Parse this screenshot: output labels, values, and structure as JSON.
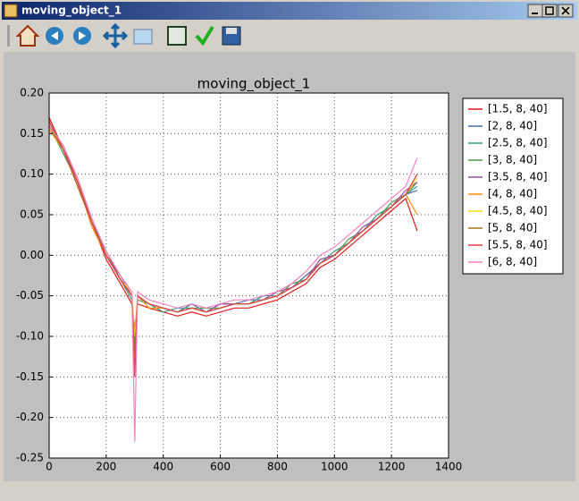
{
  "window": {
    "title": "moving_object_1"
  },
  "chart_data": {
    "type": "line",
    "title": "moving_object_1",
    "x": [
      0,
      50,
      100,
      150,
      200,
      250,
      290,
      300,
      310,
      350,
      400,
      450,
      500,
      550,
      600,
      650,
      700,
      750,
      800,
      850,
      900,
      950,
      1000,
      1050,
      1100,
      1150,
      1200,
      1250,
      1290
    ],
    "series": [
      {
        "name": "[1.5, 8, 40]",
        "color": "#e41a1c",
        "values": [
          0.17,
          0.13,
          0.085,
          0.04,
          -0.005,
          -0.035,
          -0.06,
          -0.09,
          -0.06,
          -0.065,
          -0.07,
          -0.075,
          -0.07,
          -0.075,
          -0.07,
          -0.065,
          -0.065,
          -0.06,
          -0.055,
          -0.045,
          -0.035,
          -0.015,
          -0.005,
          0.01,
          0.025,
          0.04,
          0.055,
          0.07,
          0.03
        ]
      },
      {
        "name": "[2, 8, 40]",
        "color": "#4a6fa5",
        "values": [
          0.16,
          0.135,
          0.09,
          0.045,
          0.0,
          -0.03,
          -0.05,
          -0.12,
          -0.05,
          -0.06,
          -0.065,
          -0.07,
          -0.06,
          -0.07,
          -0.06,
          -0.06,
          -0.055,
          -0.055,
          -0.05,
          -0.04,
          -0.025,
          -0.01,
          0.0,
          0.015,
          0.03,
          0.045,
          0.06,
          0.075,
          0.08
        ]
      },
      {
        "name": "[2.5, 8, 40]",
        "color": "#3d9c8c",
        "values": [
          0.165,
          0.13,
          0.09,
          0.04,
          0.0,
          -0.03,
          -0.055,
          -0.1,
          -0.055,
          -0.06,
          -0.07,
          -0.065,
          -0.065,
          -0.07,
          -0.065,
          -0.06,
          -0.06,
          -0.05,
          -0.05,
          -0.04,
          -0.03,
          -0.01,
          0.005,
          0.015,
          0.03,
          0.05,
          0.06,
          0.075,
          0.085
        ]
      },
      {
        "name": "[3, 8, 40]",
        "color": "#4e9a4e",
        "values": [
          0.16,
          0.125,
          0.09,
          0.04,
          0.005,
          -0.03,
          -0.05,
          -0.11,
          -0.05,
          -0.06,
          -0.065,
          -0.07,
          -0.065,
          -0.065,
          -0.065,
          -0.06,
          -0.06,
          -0.055,
          -0.05,
          -0.035,
          -0.03,
          -0.01,
          0.0,
          0.02,
          0.03,
          0.045,
          0.065,
          0.075,
          0.09
        ]
      },
      {
        "name": "[3.5, 8, 40]",
        "color": "#984ea3",
        "values": [
          0.16,
          0.13,
          0.095,
          0.04,
          0.0,
          -0.025,
          -0.05,
          -0.14,
          -0.05,
          -0.06,
          -0.065,
          -0.07,
          -0.065,
          -0.07,
          -0.06,
          -0.06,
          -0.06,
          -0.055,
          -0.045,
          -0.04,
          -0.03,
          -0.005,
          0.0,
          0.015,
          0.035,
          0.045,
          0.06,
          0.08,
          0.09
        ]
      },
      {
        "name": "[4, 8, 40]",
        "color": "#ff8c00",
        "values": [
          0.155,
          0.13,
          0.09,
          0.035,
          0.0,
          -0.03,
          -0.05,
          -0.13,
          -0.05,
          -0.065,
          -0.065,
          -0.07,
          -0.065,
          -0.07,
          -0.065,
          -0.06,
          -0.06,
          -0.055,
          -0.05,
          -0.04,
          -0.03,
          -0.01,
          0.0,
          0.015,
          0.03,
          0.045,
          0.06,
          0.075,
          0.05
        ]
      },
      {
        "name": "[4.5, 8, 40]",
        "color": "#f2e41c",
        "values": [
          0.16,
          0.13,
          0.09,
          0.04,
          0.0,
          -0.03,
          -0.045,
          -0.1,
          -0.05,
          -0.06,
          -0.065,
          -0.07,
          -0.065,
          -0.07,
          -0.065,
          -0.06,
          -0.06,
          -0.055,
          -0.05,
          -0.04,
          -0.03,
          -0.01,
          0.0,
          0.015,
          0.03,
          0.045,
          0.06,
          0.075,
          0.095
        ]
      },
      {
        "name": "[5, 8, 40]",
        "color": "#a6761d",
        "values": [
          0.16,
          0.13,
          0.085,
          0.04,
          0.0,
          -0.03,
          -0.05,
          -0.12,
          -0.05,
          -0.06,
          -0.065,
          -0.07,
          -0.065,
          -0.07,
          -0.065,
          -0.06,
          -0.06,
          -0.055,
          -0.05,
          -0.04,
          -0.03,
          -0.01,
          0.0,
          0.015,
          0.03,
          0.045,
          0.06,
          0.075,
          0.1
        ]
      },
      {
        "name": "[5.5, 8, 40]",
        "color": "#e0404f",
        "values": [
          0.165,
          0.13,
          0.09,
          0.04,
          0.0,
          -0.03,
          -0.05,
          -0.15,
          -0.05,
          -0.06,
          -0.065,
          -0.07,
          -0.065,
          -0.07,
          -0.065,
          -0.06,
          -0.06,
          -0.055,
          -0.05,
          -0.04,
          -0.03,
          -0.01,
          0.0,
          0.015,
          0.03,
          0.045,
          0.06,
          0.075,
          0.1
        ]
      },
      {
        "name": "[6, 8, 40]",
        "color": "#f781bf",
        "values": [
          0.16,
          0.135,
          0.095,
          0.045,
          0.005,
          -0.025,
          -0.045,
          -0.23,
          -0.045,
          -0.055,
          -0.06,
          -0.065,
          -0.06,
          -0.065,
          -0.06,
          -0.055,
          -0.055,
          -0.05,
          -0.045,
          -0.035,
          -0.02,
          0.0,
          0.01,
          0.025,
          0.04,
          0.055,
          0.07,
          0.085,
          0.12
        ]
      }
    ],
    "xlim": [
      0,
      1400
    ],
    "xticks": [
      0,
      200,
      400,
      600,
      800,
      1000,
      1200,
      1400
    ],
    "ylim": [
      -0.25,
      0.2
    ],
    "yticks": [
      {
        "value": -0.25,
        "label": "-0.25"
      },
      {
        "value": -0.2,
        "label": "-0.20"
      },
      {
        "value": -0.15,
        "label": "-0.15"
      },
      {
        "value": -0.1,
        "label": "-0.10"
      },
      {
        "value": -0.05,
        "label": "-0.05"
      },
      {
        "value": 0,
        "label": "0.00"
      },
      {
        "value": 0.05,
        "label": "0.05"
      },
      {
        "value": 0.1,
        "label": "0.10"
      },
      {
        "value": 0.15,
        "label": "0.15"
      },
      {
        "value": 0.2,
        "label": "0.20"
      }
    ],
    "grid": true,
    "legend": "outside-right"
  }
}
